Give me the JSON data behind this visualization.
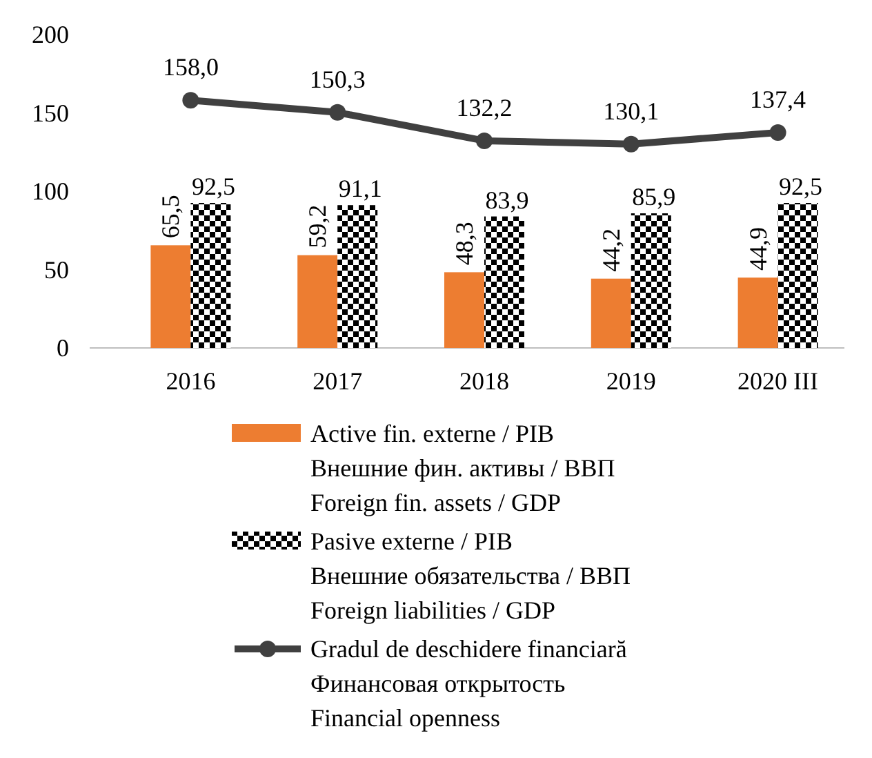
{
  "chart_data": {
    "type": "bar",
    "categories": [
      "2016",
      "2017",
      "2018",
      "2019",
      "2020 III"
    ],
    "ylim": [
      0,
      200
    ],
    "yticks": [
      0,
      50,
      100,
      150,
      200
    ],
    "grid": false,
    "legend": "bottom",
    "data_labels": true,
    "series": [
      {
        "name": "Active fin. externe / PIB\nВнешние фин. активы / ВВП\nForeign fin. assets / GDP",
        "color": "#ed7d31",
        "values": [
          65.5,
          59.2,
          48.3,
          44.2,
          44.9
        ],
        "value_labels": [
          "65,5",
          "59,2",
          "48,3",
          "44,2",
          "44,9"
        ]
      },
      {
        "name": "Pasive externe / PIB\nВнешние обязательства / ВВП\nForeign liabilities / GDP",
        "color": "#000000",
        "values": [
          92.5,
          91.1,
          83.9,
          85.9,
          92.5
        ],
        "value_labels": [
          "92,5",
          "91,1",
          "83,9",
          "85,9",
          "92,5"
        ]
      },
      {
        "type": "line",
        "marker": "circle",
        "line_style": "solid",
        "name": "Gradul de deschidere financiară\nФинансовая открытость\nFinancial openness",
        "color": "#404040",
        "values": [
          158.0,
          150.3,
          132.2,
          130.1,
          137.4
        ],
        "value_labels": [
          "158,0",
          "150,3",
          "132,2",
          "130,1",
          "137,4"
        ]
      }
    ]
  }
}
